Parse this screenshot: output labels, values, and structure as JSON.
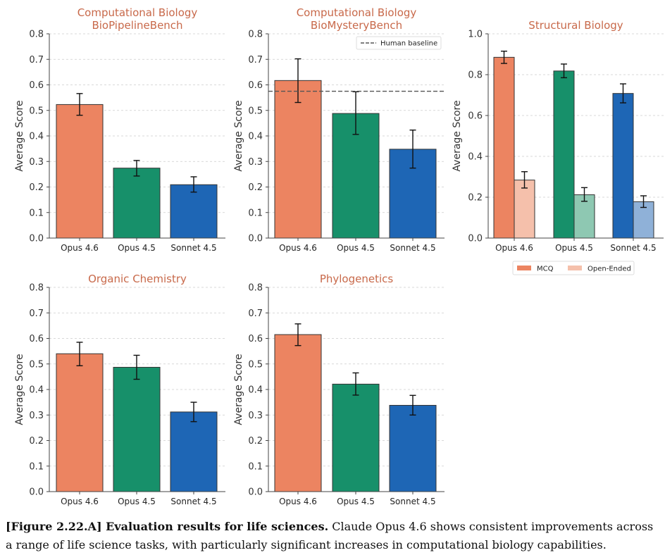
{
  "caption": {
    "bold": "[Figure 2.22.A] Evaluation results for life sciences.",
    "text": " Claude Opus 4.6 shows consistent improvements across a range of life science tasks, with particularly significant increases in computational biology capabilities."
  },
  "colors": {
    "opus46": "#ec8461",
    "opus45": "#17906a",
    "sonnet45": "#1e66b5",
    "opus46_light": "#f5c0ab",
    "opus45_light": "#8ec8b2",
    "sonnet45_light": "#8fb1d8",
    "title": "#c8694a",
    "baseline": "#555555"
  },
  "chart_data": [
    {
      "type": "bar",
      "title": [
        "Computational Biology",
        "BioPipelineBench"
      ],
      "ylabel": "Average Score",
      "categories": [
        "Opus 4.6",
        "Opus 4.5",
        "Sonnet 4.5"
      ],
      "values": [
        0.523,
        0.274,
        0.209
      ],
      "errors": [
        [
          0.481,
          0.566
        ],
        [
          0.243,
          0.304
        ],
        [
          0.18,
          0.24
        ]
      ],
      "ylim": [
        0,
        0.8
      ],
      "yticks": [
        0.0,
        0.1,
        0.2,
        0.3,
        0.4,
        0.5,
        0.6,
        0.7,
        0.8
      ],
      "grid": true
    },
    {
      "type": "bar",
      "title": [
        "Computational Biology",
        "BioMysteryBench"
      ],
      "ylabel": "Average Score",
      "categories": [
        "Opus 4.6",
        "Opus 4.5",
        "Sonnet 4.5"
      ],
      "values": [
        0.617,
        0.488,
        0.348
      ],
      "errors": [
        [
          0.531,
          0.702
        ],
        [
          0.406,
          0.573
        ],
        [
          0.274,
          0.423
        ]
      ],
      "ylim": [
        0,
        0.8
      ],
      "yticks": [
        0.0,
        0.1,
        0.2,
        0.3,
        0.4,
        0.5,
        0.6,
        0.7,
        0.8
      ],
      "baseline": {
        "value": 0.575,
        "label": "Human baseline"
      },
      "legend": "top-right",
      "grid": true
    },
    {
      "type": "bar",
      "title": [
        "Structural Biology"
      ],
      "ylabel": "Average Score",
      "categories": [
        "Opus 4.6",
        "Opus 4.5",
        "Sonnet 4.5"
      ],
      "series": [
        {
          "name": "MCQ",
          "values": [
            0.885,
            0.818,
            0.708
          ],
          "errors": [
            [
              0.855,
              0.915
            ],
            [
              0.785,
              0.852
            ],
            [
              0.662,
              0.755
            ]
          ]
        },
        {
          "name": "Open-Ended",
          "values": [
            0.284,
            0.212,
            0.178
          ],
          "errors": [
            [
              0.245,
              0.325
            ],
            [
              0.18,
              0.247
            ],
            [
              0.15,
              0.207
            ]
          ]
        }
      ],
      "ylim": [
        0,
        1.0
      ],
      "yticks": [
        0.0,
        0.2,
        0.4,
        0.6,
        0.8,
        1.0
      ],
      "legend": "bottom-center",
      "grid": true
    },
    {
      "type": "bar",
      "title": [
        "Organic Chemistry"
      ],
      "ylabel": "Average Score",
      "categories": [
        "Opus 4.6",
        "Opus 4.5",
        "Sonnet 4.5"
      ],
      "values": [
        0.54,
        0.487,
        0.312
      ],
      "errors": [
        [
          0.493,
          0.585
        ],
        [
          0.44,
          0.534
        ],
        [
          0.274,
          0.35
        ]
      ],
      "ylim": [
        0,
        0.8
      ],
      "yticks": [
        0.0,
        0.1,
        0.2,
        0.3,
        0.4,
        0.5,
        0.6,
        0.7,
        0.8
      ],
      "grid": true
    },
    {
      "type": "bar",
      "title": [
        "Phylogenetics"
      ],
      "ylabel": "Average Score",
      "categories": [
        "Opus 4.6",
        "Opus 4.5",
        "Sonnet 4.5"
      ],
      "values": [
        0.615,
        0.421,
        0.338
      ],
      "errors": [
        [
          0.572,
          0.657
        ],
        [
          0.378,
          0.465
        ],
        [
          0.3,
          0.377
        ]
      ],
      "ylim": [
        0,
        0.8
      ],
      "yticks": [
        0.0,
        0.1,
        0.2,
        0.3,
        0.4,
        0.5,
        0.6,
        0.7,
        0.8
      ],
      "grid": true
    }
  ]
}
